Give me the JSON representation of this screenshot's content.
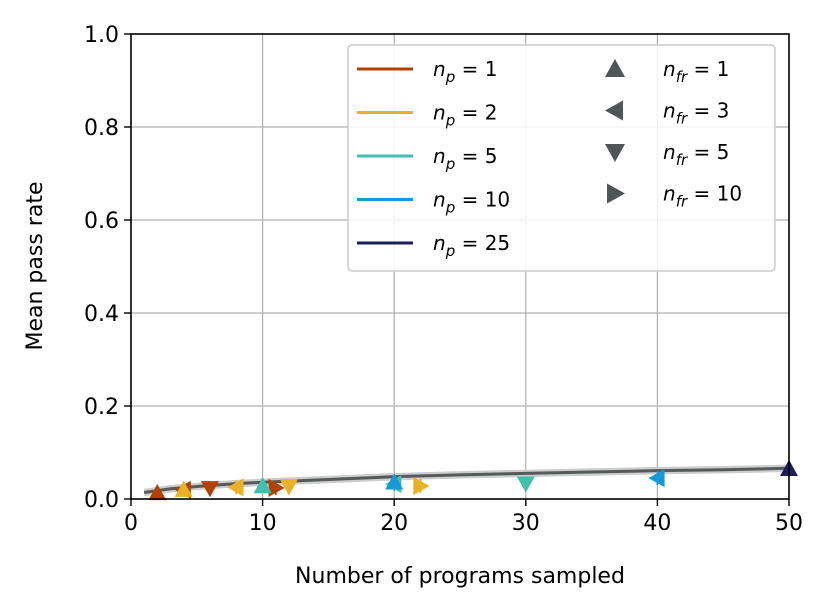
{
  "chart_data": {
    "type": "line",
    "title": "",
    "xlabel": "Number of programs sampled",
    "ylabel": "Mean pass rate",
    "xlim": [
      0,
      50
    ],
    "ylim": [
      0,
      1.0
    ],
    "xticks": [
      0,
      10,
      20,
      30,
      40,
      50
    ],
    "yticks": [
      0.0,
      0.2,
      0.4,
      0.6,
      0.8,
      1.0
    ],
    "grid": true,
    "legend_position": "top-right",
    "trend_line": {
      "color": "#555a5a",
      "band_color": "#c8c8c8",
      "x": [
        1,
        3,
        5,
        8,
        10,
        15,
        20,
        25,
        30,
        35,
        40,
        45,
        50
      ],
      "y": [
        0.014,
        0.022,
        0.027,
        0.033,
        0.036,
        0.042,
        0.048,
        0.052,
        0.055,
        0.058,
        0.061,
        0.063,
        0.066
      ],
      "band": [
        0.008,
        0.008,
        0.008,
        0.008,
        0.008,
        0.008,
        0.008,
        0.008,
        0.008,
        0.008,
        0.008,
        0.008,
        0.008
      ]
    },
    "np_legend": [
      {
        "label": "n_p = 1",
        "sub": "p",
        "value": "1",
        "color": "#b34200"
      },
      {
        "label": "n_p = 2",
        "sub": "p",
        "value": "2",
        "color": "#ecb122"
      },
      {
        "label": "n_p = 5",
        "sub": "p",
        "value": "5",
        "color": "#3fc1ad"
      },
      {
        "label": "n_p = 10",
        "sub": "p",
        "value": "10",
        "color": "#1799d9"
      },
      {
        "label": "n_p = 25",
        "sub": "p",
        "value": "25",
        "color": "#1d1e5c"
      }
    ],
    "nfr_legend": [
      {
        "label": "n_fr = 1",
        "sub": "fr",
        "value": "1",
        "marker": "up"
      },
      {
        "label": "n_fr = 3",
        "sub": "fr",
        "value": "3",
        "marker": "left"
      },
      {
        "label": "n_fr = 5",
        "sub": "fr",
        "value": "5",
        "marker": "down"
      },
      {
        "label": "n_fr = 10",
        "sub": "fr",
        "value": "10",
        "marker": "right"
      }
    ],
    "points": [
      {
        "np": 1,
        "nfr": 1,
        "x": 2,
        "y": 0.013,
        "color": "#b34200",
        "marker": "up"
      },
      {
        "np": 1,
        "nfr": 3,
        "x": 4,
        "y": 0.02,
        "color": "#b34200",
        "marker": "left"
      },
      {
        "np": 1,
        "nfr": 5,
        "x": 6,
        "y": 0.023,
        "color": "#b34200",
        "marker": "down"
      },
      {
        "np": 1,
        "nfr": 10,
        "x": 11,
        "y": 0.024,
        "color": "#b34200",
        "marker": "right"
      },
      {
        "np": 2,
        "nfr": 1,
        "x": 4,
        "y": 0.02,
        "color": "#ecb122",
        "marker": "up"
      },
      {
        "np": 2,
        "nfr": 3,
        "x": 8,
        "y": 0.025,
        "color": "#ecb122",
        "marker": "left"
      },
      {
        "np": 2,
        "nfr": 5,
        "x": 12,
        "y": 0.027,
        "color": "#ecb122",
        "marker": "down"
      },
      {
        "np": 2,
        "nfr": 10,
        "x": 22,
        "y": 0.028,
        "color": "#ecb122",
        "marker": "right"
      },
      {
        "np": 5,
        "nfr": 1,
        "x": 10,
        "y": 0.028,
        "color": "#3fc1ad",
        "marker": "up"
      },
      {
        "np": 5,
        "nfr": 3,
        "x": 20,
        "y": 0.032,
        "color": "#3fc1ad",
        "marker": "left"
      },
      {
        "np": 5,
        "nfr": 5,
        "x": 30,
        "y": 0.033,
        "color": "#3fc1ad",
        "marker": "down"
      },
      {
        "np": 10,
        "nfr": 1,
        "x": 20,
        "y": 0.036,
        "color": "#1799d9",
        "marker": "up"
      },
      {
        "np": 10,
        "nfr": 3,
        "x": 40,
        "y": 0.045,
        "color": "#1799d9",
        "marker": "left"
      },
      {
        "np": 25,
        "nfr": 1,
        "x": 50,
        "y": 0.065,
        "color": "#1d1e5c",
        "marker": "up"
      }
    ]
  }
}
